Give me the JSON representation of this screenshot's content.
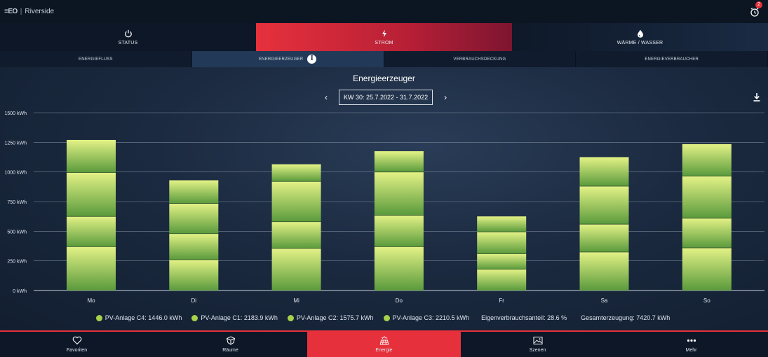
{
  "header": {
    "logo": "≡EO",
    "location": "Riverside",
    "alarm_count": "2"
  },
  "main_tabs": [
    {
      "label": "STATUS",
      "icon": "power-icon",
      "active": false
    },
    {
      "label": "STROM",
      "icon": "lightning-icon",
      "active": true
    },
    {
      "label": "WÄRME / WASSER",
      "icon": "water-drop-icon",
      "active": false
    }
  ],
  "sub_tabs": [
    {
      "label": "ENERGIEFLUSS",
      "active": false
    },
    {
      "label": "ENERGIEERZEUGER",
      "active": true,
      "info_icon": "i"
    },
    {
      "label": "VERBRAUCHSDECKUNG",
      "active": false
    },
    {
      "label": "ENERGIEVERBRAUCHER",
      "active": false
    }
  ],
  "page": {
    "title": "Energieerzeuger",
    "week_label": "KW 30: 25.7.2022 - 31.7.2022",
    "prev_icon": "chevron-left-icon",
    "next_icon": "chevron-right-icon",
    "download_icon": "download-icon"
  },
  "chart_data": {
    "type": "bar",
    "stacked": true,
    "title": "Energieerzeuger",
    "categories": [
      "Mo",
      "Di",
      "Mi",
      "Do",
      "Fr",
      "Sa",
      "So"
    ],
    "y_ticks": [
      "0 kWh",
      "250 kWh",
      "500 kWh",
      "750 kWh",
      "1000 kWh",
      "1250 kWh",
      "1500 kWh"
    ],
    "ylim": [
      0,
      1500
    ],
    "grid": true,
    "series": [
      {
        "name": "PV-Anlage C3",
        "values": [
          370,
          260,
          355,
          370,
          180,
          325,
          360
        ]
      },
      {
        "name": "PV-Anlage C2",
        "values": [
          255,
          220,
          225,
          265,
          130,
          235,
          250
        ]
      },
      {
        "name": "PV-Anlage C1",
        "values": [
          370,
          255,
          340,
          365,
          185,
          320,
          355
        ]
      },
      {
        "name": "PV-Anlage C4",
        "values": [
          275,
          195,
          145,
          175,
          130,
          245,
          270
        ]
      }
    ],
    "color_top": "#e3f286",
    "color_bottom": "#5a9a3c"
  },
  "legend": {
    "items": [
      "PV-Anlage C4: 1446.0 kWh",
      "PV-Anlage C1: 2183.9 kWh",
      "PV-Anlage C2: 1575.7 kWh",
      "PV-Anlage C3: 2210.5 kWh"
    ],
    "self_consumption": "Eigenverbrauchsanteil: 28.6 %",
    "total": "Gesamterzeugung: 7420.7 kWh"
  },
  "bottom_nav": [
    {
      "label": "Favoriten",
      "icon": "heart-icon",
      "active": false
    },
    {
      "label": "Räume",
      "icon": "cube-icon",
      "active": false
    },
    {
      "label": "Energie",
      "icon": "solar-energy-icon",
      "active": true
    },
    {
      "label": "Szenen",
      "icon": "image-icon",
      "active": false
    },
    {
      "label": "Mehr",
      "icon": "more-dots-icon",
      "active": false
    }
  ],
  "colors": {
    "accent": "#e6313c",
    "active_subtab": "#223957",
    "background": "#0f1a2b",
    "legend_dot": "#a6d24a"
  }
}
